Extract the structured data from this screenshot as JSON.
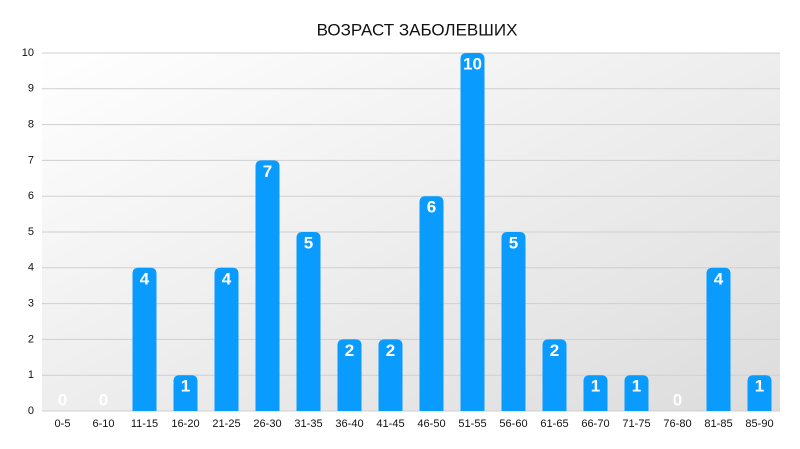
{
  "chart_data": {
    "type": "bar",
    "title": "ВОЗРАСТ ЗАБОЛЕВШИХ",
    "categories": [
      "0-5",
      "6-10",
      "11-15",
      "16-20",
      "21-25",
      "26-30",
      "31-35",
      "36-40",
      "41-45",
      "46-50",
      "51-55",
      "56-60",
      "61-65",
      "66-70",
      "71-75",
      "76-80",
      "81-85",
      "85-90"
    ],
    "values": [
      0,
      0,
      4,
      1,
      4,
      7,
      5,
      2,
      2,
      6,
      10,
      5,
      2,
      1,
      1,
      0,
      4,
      1
    ],
    "color": "#0a9bff",
    "ylim": [
      0,
      10
    ],
    "yticks": [
      0,
      1,
      2,
      3,
      4,
      5,
      6,
      7,
      8,
      9,
      10
    ],
    "grid": true
  }
}
